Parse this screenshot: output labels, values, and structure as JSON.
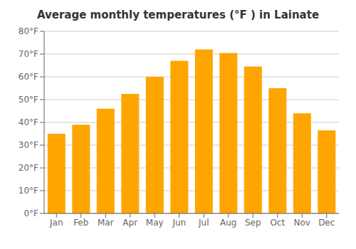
{
  "chart_data": {
    "type": "bar",
    "title": "Average monthly temperatures (°F ) in Lainate",
    "categories": [
      "Jan",
      "Feb",
      "Mar",
      "Apr",
      "May",
      "Jun",
      "Jul",
      "Aug",
      "Sep",
      "Oct",
      "Nov",
      "Dec"
    ],
    "values": [
      35.0,
      39.0,
      46.0,
      52.5,
      60.0,
      67.0,
      72.0,
      70.5,
      64.5,
      55.0,
      44.0,
      36.5
    ],
    "color": "#FFA500",
    "ylim": [
      0,
      80
    ],
    "yticks": [
      {
        "value": 0,
        "label": "0°F"
      },
      {
        "value": 10,
        "label": "10°F"
      },
      {
        "value": 20,
        "label": "20°F"
      },
      {
        "value": 30,
        "label": "30°F"
      },
      {
        "value": 40,
        "label": "40°F"
      },
      {
        "value": 50,
        "label": "50°F"
      },
      {
        "value": 60,
        "label": "60°F"
      },
      {
        "value": 70,
        "label": "70°F"
      },
      {
        "value": 80,
        "label": "80°F"
      }
    ],
    "grid": true
  }
}
